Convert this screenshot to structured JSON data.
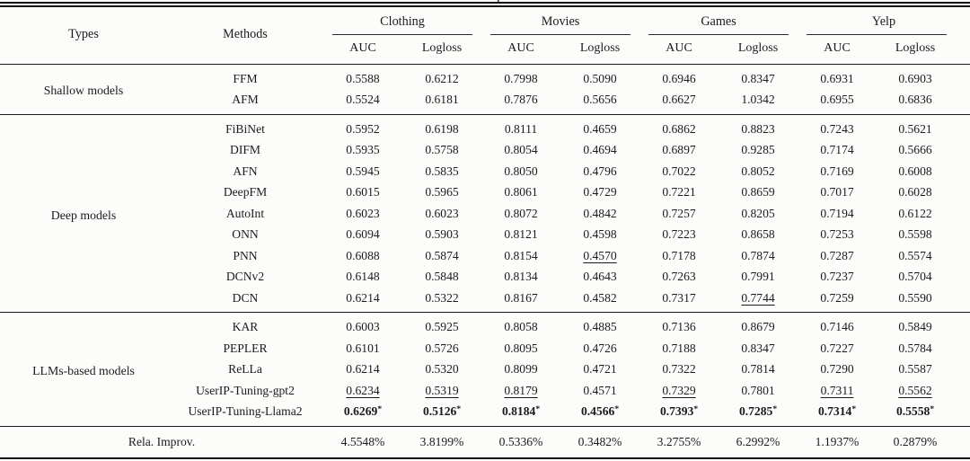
{
  "caption_fragment": "p",
  "colors": {
    "text": "#1b1b1b",
    "rule": "#141414",
    "background": "#fcfcfb"
  },
  "header": {
    "types": "Types",
    "methods": "Methods",
    "datasets": [
      "Clothing",
      "Movies",
      "Games",
      "Yelp"
    ],
    "metrics": [
      "AUC",
      "Logloss"
    ]
  },
  "sections": [
    {
      "type": "Shallow models",
      "rows": [
        {
          "method": "FFM",
          "values": [
            "0.5588",
            "0.6212",
            "0.7998",
            "0.5090",
            "0.6946",
            "0.8347",
            "0.6931",
            "0.6903"
          ]
        },
        {
          "method": "AFM",
          "values": [
            "0.5524",
            "0.6181",
            "0.7876",
            "0.5656",
            "0.6627",
            "1.0342",
            "0.6955",
            "0.6836"
          ]
        }
      ]
    },
    {
      "type": "Deep models",
      "rows": [
        {
          "method": "FiBiNet",
          "values": [
            "0.5952",
            "0.6198",
            "0.8111",
            "0.4659",
            "0.6862",
            "0.8823",
            "0.7243",
            "0.5621"
          ]
        },
        {
          "method": "DIFM",
          "values": [
            "0.5935",
            "0.5758",
            "0.8054",
            "0.4694",
            "0.6897",
            "0.9285",
            "0.7174",
            "0.5666"
          ]
        },
        {
          "method": "AFN",
          "values": [
            "0.5945",
            "0.5835",
            "0.8050",
            "0.4796",
            "0.7022",
            "0.8052",
            "0.7169",
            "0.6008"
          ]
        },
        {
          "method": "DeepFM",
          "values": [
            "0.6015",
            "0.5965",
            "0.8061",
            "0.4729",
            "0.7221",
            "0.8659",
            "0.7017",
            "0.6028"
          ]
        },
        {
          "method": "AutoInt",
          "values": [
            "0.6023",
            "0.6023",
            "0.8072",
            "0.4842",
            "0.7257",
            "0.8205",
            "0.7194",
            "0.6122"
          ]
        },
        {
          "method": "ONN",
          "values": [
            "0.6094",
            "0.5903",
            "0.8121",
            "0.4598",
            "0.7223",
            "0.8658",
            "0.7253",
            "0.5598"
          ]
        },
        {
          "method": "PNN",
          "values": [
            "0.6088",
            "0.5874",
            "0.8154",
            "0.4570",
            "0.7178",
            "0.7874",
            "0.7287",
            "0.5574"
          ],
          "underline": [
            3
          ]
        },
        {
          "method": "DCNv2",
          "values": [
            "0.6148",
            "0.5848",
            "0.8134",
            "0.4643",
            "0.7263",
            "0.7991",
            "0.7237",
            "0.5704"
          ]
        },
        {
          "method": "DCN",
          "values": [
            "0.6214",
            "0.5322",
            "0.8167",
            "0.4582",
            "0.7317",
            "0.7744",
            "0.7259",
            "0.5590"
          ],
          "underline": [
            5
          ]
        }
      ]
    },
    {
      "type": "LLMs-based models",
      "rows": [
        {
          "method": "KAR",
          "values": [
            "0.6003",
            "0.5925",
            "0.8058",
            "0.4885",
            "0.7136",
            "0.8679",
            "0.7146",
            "0.5849"
          ]
        },
        {
          "method": "PEPLER",
          "values": [
            "0.6101",
            "0.5726",
            "0.8095",
            "0.4726",
            "0.7188",
            "0.8347",
            "0.7227",
            "0.5784"
          ]
        },
        {
          "method": "ReLLa",
          "values": [
            "0.6214",
            "0.5320",
            "0.8099",
            "0.4721",
            "0.7322",
            "0.7814",
            "0.7290",
            "0.5587"
          ]
        },
        {
          "method": "UserIP-Tuning-gpt2",
          "values": [
            "0.6234",
            "0.5319",
            "0.8179",
            "0.4571",
            "0.7329",
            "0.7801",
            "0.7311",
            "0.5562"
          ],
          "underline": [
            0,
            1,
            2,
            4,
            6,
            7
          ]
        },
        {
          "method": "UserIP-Tuning-Llama2",
          "values": [
            "0.6269",
            "0.5126",
            "0.8184",
            "0.4566",
            "0.7393",
            "0.7285",
            "0.7314",
            "0.5558"
          ],
          "bold": true,
          "star": true
        }
      ]
    }
  ],
  "footer": {
    "label": "Rela. Improv.",
    "values": [
      "4.5548%",
      "3.8199%",
      "0.5336%",
      "0.3482%",
      "3.2755%",
      "6.2992%",
      "1.1937%",
      "0.2879%"
    ]
  }
}
